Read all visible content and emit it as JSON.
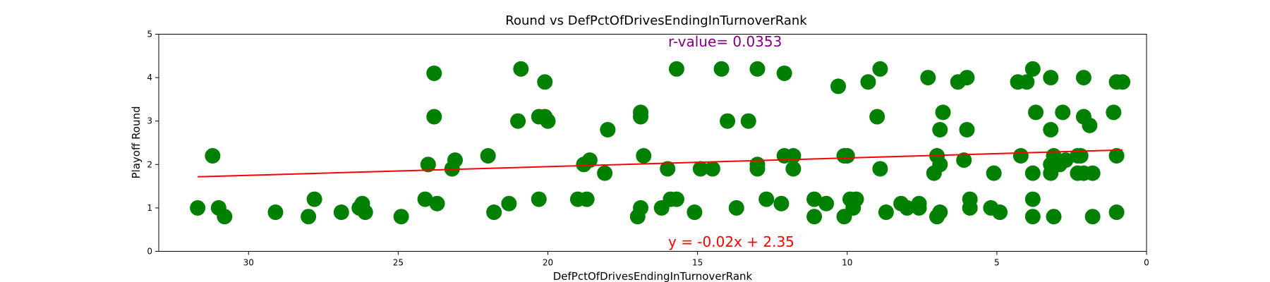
{
  "chart_data": {
    "type": "scatter",
    "title": "Round vs DefPctOfDrivesEndingInTurnoverRank",
    "xlabel": "DefPctOfDrivesEndingInTurnoverRank",
    "ylabel": "Playoff Round",
    "xlim": [
      33,
      0
    ],
    "ylim": [
      0,
      5
    ],
    "x_ticks": [
      30,
      25,
      20,
      15,
      10,
      5,
      0
    ],
    "y_ticks": [
      0,
      1,
      2,
      3,
      4,
      5
    ],
    "grid": false,
    "point_color": "#008000",
    "points": [
      {
        "x": 31.7,
        "y": 1.0
      },
      {
        "x": 31.2,
        "y": 2.2
      },
      {
        "x": 31.0,
        "y": 1.0
      },
      {
        "x": 30.8,
        "y": 0.8
      },
      {
        "x": 29.1,
        "y": 0.9
      },
      {
        "x": 28.0,
        "y": 0.8
      },
      {
        "x": 27.8,
        "y": 1.2
      },
      {
        "x": 26.9,
        "y": 0.9
      },
      {
        "x": 26.3,
        "y": 1.0
      },
      {
        "x": 26.2,
        "y": 1.1
      },
      {
        "x": 26.1,
        "y": 0.9
      },
      {
        "x": 24.9,
        "y": 0.8
      },
      {
        "x": 24.1,
        "y": 1.2
      },
      {
        "x": 24.0,
        "y": 2.0
      },
      {
        "x": 23.8,
        "y": 4.1
      },
      {
        "x": 23.8,
        "y": 3.1
      },
      {
        "x": 23.7,
        "y": 1.1
      },
      {
        "x": 23.2,
        "y": 1.9
      },
      {
        "x": 23.1,
        "y": 2.1
      },
      {
        "x": 22.0,
        "y": 2.2
      },
      {
        "x": 21.8,
        "y": 0.9
      },
      {
        "x": 21.3,
        "y": 1.1
      },
      {
        "x": 21.0,
        "y": 3.0
      },
      {
        "x": 20.9,
        "y": 4.2
      },
      {
        "x": 20.3,
        "y": 3.1
      },
      {
        "x": 20.3,
        "y": 1.2
      },
      {
        "x": 20.1,
        "y": 3.1
      },
      {
        "x": 20.1,
        "y": 3.9
      },
      {
        "x": 20.0,
        "y": 3.0
      },
      {
        "x": 19.0,
        "y": 1.2
      },
      {
        "x": 18.8,
        "y": 2.0
      },
      {
        "x": 18.7,
        "y": 1.2
      },
      {
        "x": 18.6,
        "y": 2.1
      },
      {
        "x": 18.1,
        "y": 1.8
      },
      {
        "x": 18.0,
        "y": 2.8
      },
      {
        "x": 17.0,
        "y": 0.8
      },
      {
        "x": 16.9,
        "y": 1.0
      },
      {
        "x": 16.9,
        "y": 3.2
      },
      {
        "x": 16.9,
        "y": 3.1
      },
      {
        "x": 16.8,
        "y": 2.2
      },
      {
        "x": 16.2,
        "y": 1.0
      },
      {
        "x": 16.0,
        "y": 1.9
      },
      {
        "x": 15.9,
        "y": 1.2
      },
      {
        "x": 15.7,
        "y": 1.2
      },
      {
        "x": 15.7,
        "y": 4.2
      },
      {
        "x": 15.1,
        "y": 0.9
      },
      {
        "x": 14.9,
        "y": 1.9
      },
      {
        "x": 14.5,
        "y": 1.9
      },
      {
        "x": 14.2,
        "y": 4.2
      },
      {
        "x": 14.0,
        "y": 3.0
      },
      {
        "x": 13.7,
        "y": 1.0
      },
      {
        "x": 13.3,
        "y": 3.0
      },
      {
        "x": 13.0,
        "y": 2.0
      },
      {
        "x": 13.0,
        "y": 4.2
      },
      {
        "x": 13.0,
        "y": 1.9
      },
      {
        "x": 12.7,
        "y": 1.2
      },
      {
        "x": 12.2,
        "y": 1.1
      },
      {
        "x": 12.1,
        "y": 4.1
      },
      {
        "x": 12.1,
        "y": 2.2
      },
      {
        "x": 11.8,
        "y": 2.2
      },
      {
        "x": 11.8,
        "y": 1.9
      },
      {
        "x": 11.1,
        "y": 1.2
      },
      {
        "x": 11.1,
        "y": 0.8
      },
      {
        "x": 10.7,
        "y": 1.1
      },
      {
        "x": 10.3,
        "y": 3.8
      },
      {
        "x": 10.1,
        "y": 0.8
      },
      {
        "x": 10.1,
        "y": 2.2
      },
      {
        "x": 10.0,
        "y": 2.2
      },
      {
        "x": 9.9,
        "y": 1.2
      },
      {
        "x": 9.8,
        "y": 1.0
      },
      {
        "x": 9.7,
        "y": 1.2
      },
      {
        "x": 9.3,
        "y": 3.9
      },
      {
        "x": 9.0,
        "y": 3.1
      },
      {
        "x": 8.9,
        "y": 1.9
      },
      {
        "x": 8.9,
        "y": 4.2
      },
      {
        "x": 8.7,
        "y": 0.9
      },
      {
        "x": 8.2,
        "y": 1.1
      },
      {
        "x": 8.0,
        "y": 1.0
      },
      {
        "x": 7.6,
        "y": 1.0
      },
      {
        "x": 7.6,
        "y": 1.1
      },
      {
        "x": 7.3,
        "y": 4.0
      },
      {
        "x": 7.1,
        "y": 1.8
      },
      {
        "x": 7.0,
        "y": 2.2
      },
      {
        "x": 7.0,
        "y": 0.8
      },
      {
        "x": 6.9,
        "y": 2.8
      },
      {
        "x": 6.9,
        "y": 2.0
      },
      {
        "x": 6.9,
        "y": 0.9
      },
      {
        "x": 6.8,
        "y": 3.2
      },
      {
        "x": 6.3,
        "y": 3.9
      },
      {
        "x": 6.1,
        "y": 2.1
      },
      {
        "x": 6.0,
        "y": 4.0
      },
      {
        "x": 6.0,
        "y": 2.8
      },
      {
        "x": 5.9,
        "y": 1.2
      },
      {
        "x": 5.9,
        "y": 1.0
      },
      {
        "x": 5.2,
        "y": 1.0
      },
      {
        "x": 5.1,
        "y": 1.8
      },
      {
        "x": 4.9,
        "y": 0.9
      },
      {
        "x": 4.3,
        "y": 3.9
      },
      {
        "x": 4.2,
        "y": 2.2
      },
      {
        "x": 4.0,
        "y": 3.9
      },
      {
        "x": 3.8,
        "y": 4.2
      },
      {
        "x": 3.8,
        "y": 1.8
      },
      {
        "x": 3.8,
        "y": 1.2
      },
      {
        "x": 3.8,
        "y": 0.8
      },
      {
        "x": 3.7,
        "y": 3.2
      },
      {
        "x": 3.2,
        "y": 4.0
      },
      {
        "x": 3.2,
        "y": 2.8
      },
      {
        "x": 3.2,
        "y": 2.0
      },
      {
        "x": 3.2,
        "y": 1.8
      },
      {
        "x": 3.1,
        "y": 2.2
      },
      {
        "x": 3.1,
        "y": 0.8
      },
      {
        "x": 2.9,
        "y": 2.0
      },
      {
        "x": 2.8,
        "y": 3.2
      },
      {
        "x": 2.7,
        "y": 2.1
      },
      {
        "x": 2.3,
        "y": 2.2
      },
      {
        "x": 2.3,
        "y": 1.8
      },
      {
        "x": 2.2,
        "y": 2.2
      },
      {
        "x": 2.1,
        "y": 4.0
      },
      {
        "x": 2.1,
        "y": 3.1
      },
      {
        "x": 2.1,
        "y": 1.8
      },
      {
        "x": 1.9,
        "y": 2.9
      },
      {
        "x": 1.8,
        "y": 0.8
      },
      {
        "x": 1.8,
        "y": 1.8
      },
      {
        "x": 1.1,
        "y": 3.2
      },
      {
        "x": 1.0,
        "y": 3.9
      },
      {
        "x": 1.0,
        "y": 2.2
      },
      {
        "x": 1.0,
        "y": 0.9
      },
      {
        "x": 0.8,
        "y": 3.9
      }
    ],
    "regression": {
      "slope": -0.02,
      "intercept": 2.35,
      "x_range": [
        31.7,
        0.8
      ],
      "color": "#ff0000",
      "equation_label": "y = -0.02x + 2.35"
    },
    "r_value": {
      "label": "r-value= 0.0353",
      "color": "#800080"
    }
  }
}
